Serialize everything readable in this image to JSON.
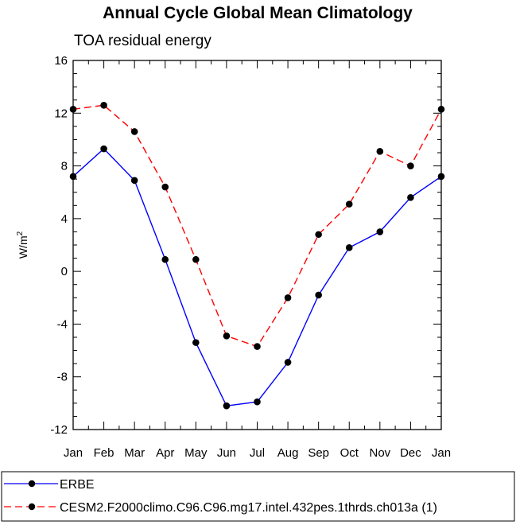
{
  "chart_data": {
    "type": "line",
    "title": "Annual Cycle Global Mean Climatology",
    "subtitle": "TOA residual energy",
    "ylabel": "W/m",
    "ylabel_superscript": "2",
    "xlabel": "",
    "ylim": [
      -12,
      16
    ],
    "yticks": [
      -12,
      -8,
      -4,
      0,
      4,
      8,
      12,
      16
    ],
    "categories": [
      "Jan",
      "Feb",
      "Mar",
      "Apr",
      "May",
      "Jun",
      "Jul",
      "Aug",
      "Sep",
      "Oct",
      "Nov",
      "Dec",
      "Jan"
    ],
    "series": [
      {
        "name": "ERBE",
        "color": "#0000ff",
        "dash": "solid",
        "marker": "filled-circle",
        "values": [
          7.2,
          9.3,
          6.9,
          0.9,
          -5.4,
          -10.2,
          -9.9,
          -6.9,
          -1.8,
          1.8,
          3.0,
          5.6,
          7.2
        ]
      },
      {
        "name": "CESM2.F2000climo.C96.C96.mg17.intel.432pes.1thrds.ch013a (1)",
        "color": "#ff0000",
        "dash": "dashed",
        "marker": "filled-circle",
        "values": [
          12.3,
          12.6,
          10.6,
          6.4,
          0.9,
          -4.9,
          -5.7,
          -2.0,
          2.8,
          5.1,
          9.1,
          8.0,
          12.3
        ]
      }
    ],
    "legend_position": "bottom-left"
  }
}
